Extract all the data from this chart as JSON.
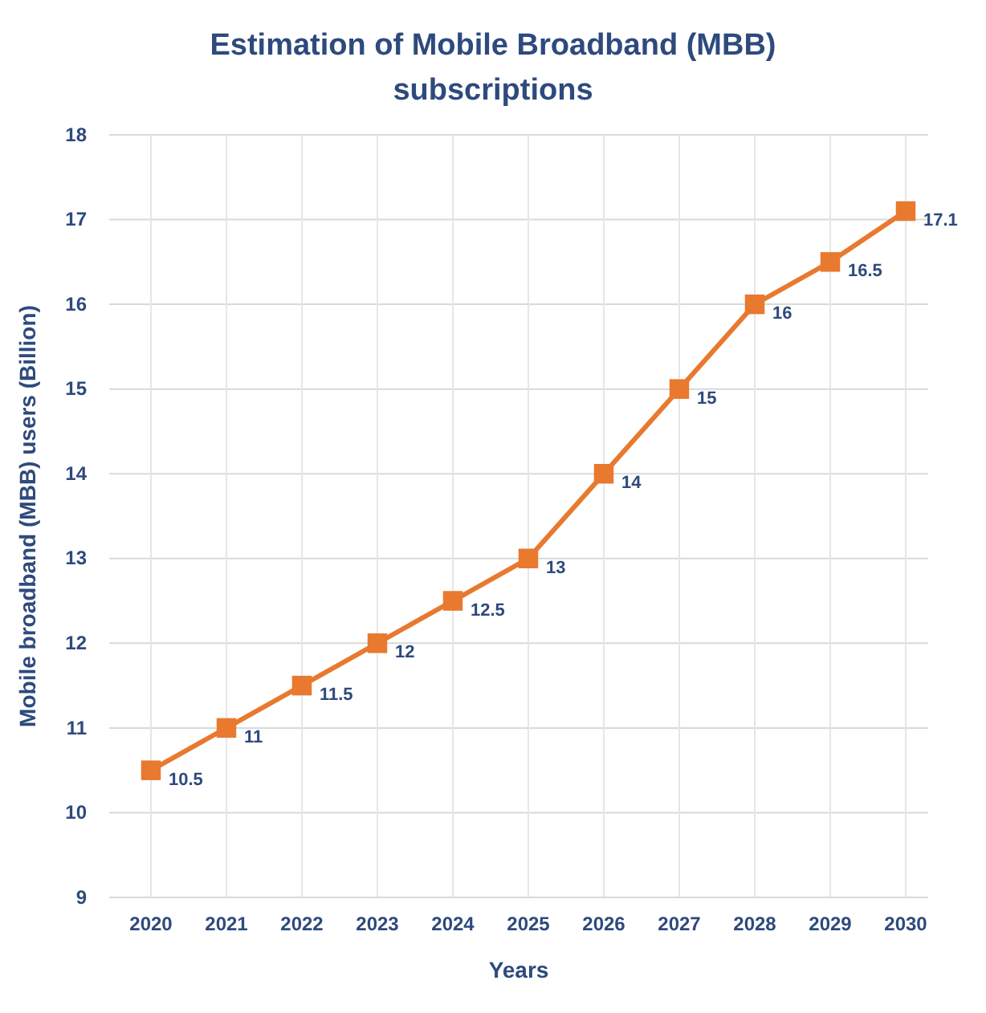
{
  "chart_data": {
    "type": "line",
    "title": "Estimation of Mobile Broadband (MBB) subscriptions",
    "xlabel": "Years",
    "ylabel": "Mobile broadband (MBB) users (Billion)",
    "categories": [
      "2020",
      "2021",
      "2022",
      "2023",
      "2024",
      "2025",
      "2026",
      "2027",
      "2028",
      "2029",
      "2030"
    ],
    "series": [
      {
        "color": "#e8792f",
        "values": [
          10.5,
          11,
          11.5,
          12,
          12.5,
          13,
          14,
          15,
          16,
          16.5,
          17.1
        ]
      }
    ],
    "ylim": [
      9,
      18
    ],
    "yticks": [
      9,
      10,
      11,
      12,
      13,
      14,
      15,
      16,
      17,
      18
    ],
    "grid": true,
    "marker": "square",
    "line_style": "solid",
    "data_labels": true
  }
}
